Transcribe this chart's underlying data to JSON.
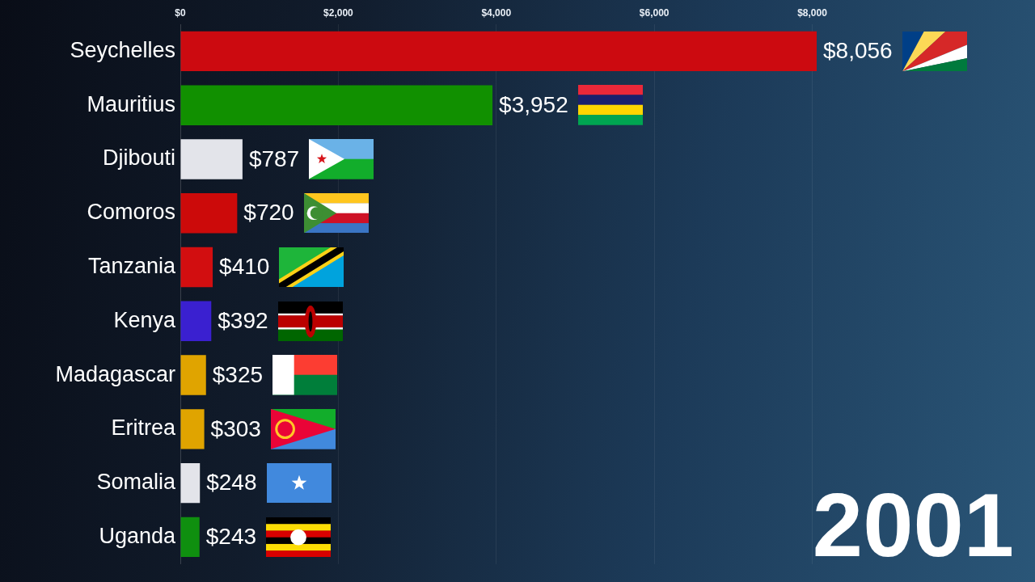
{
  "chart_data": {
    "type": "bar",
    "orientation": "horizontal",
    "categories": [
      "Seychelles",
      "Mauritius",
      "Djibouti",
      "Comoros",
      "Tanzania",
      "Kenya",
      "Madagascar",
      "Eritrea",
      "Somalia",
      "Uganda"
    ],
    "values": [
      8056,
      3952,
      787,
      720,
      410,
      392,
      325,
      303,
      248,
      243
    ],
    "colors": [
      "#cc0a10",
      "#119000",
      "#e3e4ea",
      "#cc0a0a",
      "#d20e10",
      "#3a20d0",
      "#e0a400",
      "#e0a400",
      "#e3e4ea",
      "#0f8f0f"
    ],
    "value_labels": [
      "$8,056",
      "$3,952",
      "$787",
      "$720",
      "$410",
      "$392",
      "$325",
      "$303",
      "$248",
      "$243"
    ],
    "xlim": [
      0,
      8056
    ],
    "xticks": [
      {
        "value": 0,
        "label": "$0"
      },
      {
        "value": 2000,
        "label": "$2,000"
      },
      {
        "value": 4000,
        "label": "$4,000"
      },
      {
        "value": 6000,
        "label": "$6,000"
      },
      {
        "value": 8000,
        "label": "$8,000"
      }
    ],
    "grid": "x",
    "annotations": [
      "2001"
    ]
  }
}
